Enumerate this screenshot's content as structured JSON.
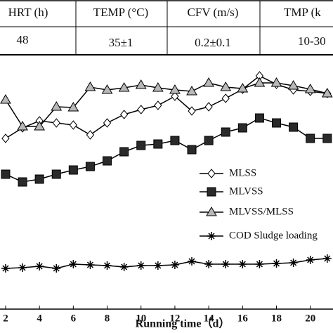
{
  "table": {
    "headers": [
      "HRT (h)",
      "TEMP (°C)",
      "CFV (m/s)",
      "TMP (k"
    ],
    "rows": [
      [
        "48",
        "35±1",
        "0.2±0.1",
        "10-30"
      ]
    ]
  },
  "chart_data": {
    "type": "line",
    "x_label": "Running time（d）",
    "x": [
      2,
      3,
      4,
      5,
      6,
      7,
      8,
      9,
      10,
      11,
      12,
      13,
      14,
      15,
      16,
      17,
      18,
      19,
      20,
      21
    ],
    "xlim": [
      1.67,
      21.34
    ],
    "xticks": [
      2,
      4,
      6,
      8,
      10,
      12,
      14,
      16,
      18,
      20
    ],
    "ylim": [
      0,
      350
    ],
    "series": [
      {
        "name": "MLSS",
        "color": "#ffffff",
        "marker": "diamond",
        "values": [
          243,
          258,
          268,
          265,
          262,
          248,
          265,
          277,
          284,
          290,
          303,
          282,
          288,
          300,
          313,
          332,
          320,
          312,
          310,
          307
        ]
      },
      {
        "name": "MLVSS",
        "color": "#2a2a2a",
        "marker": "square",
        "values": [
          192,
          181,
          185,
          192,
          198,
          203,
          211,
          224,
          233,
          235,
          240,
          227,
          240,
          252,
          258,
          272,
          265,
          259,
          243,
          243
        ]
      },
      {
        "name": "MLVSS/MLSS",
        "color": "#b8b8b8",
        "marker": "triangle",
        "values": [
          298,
          260,
          260,
          288,
          287,
          316,
          312,
          315,
          319,
          315,
          312,
          310,
          322,
          316,
          314,
          322,
          322,
          318,
          313,
          307
        ]
      },
      {
        "name": "COD Sludge loading",
        "color": "#000000",
        "marker": "star",
        "values": [
          58,
          59,
          61,
          58,
          64,
          63,
          62,
          60,
          62,
          62,
          63,
          68,
          64,
          64,
          64,
          64,
          65,
          66,
          70,
          72
        ]
      }
    ]
  }
}
